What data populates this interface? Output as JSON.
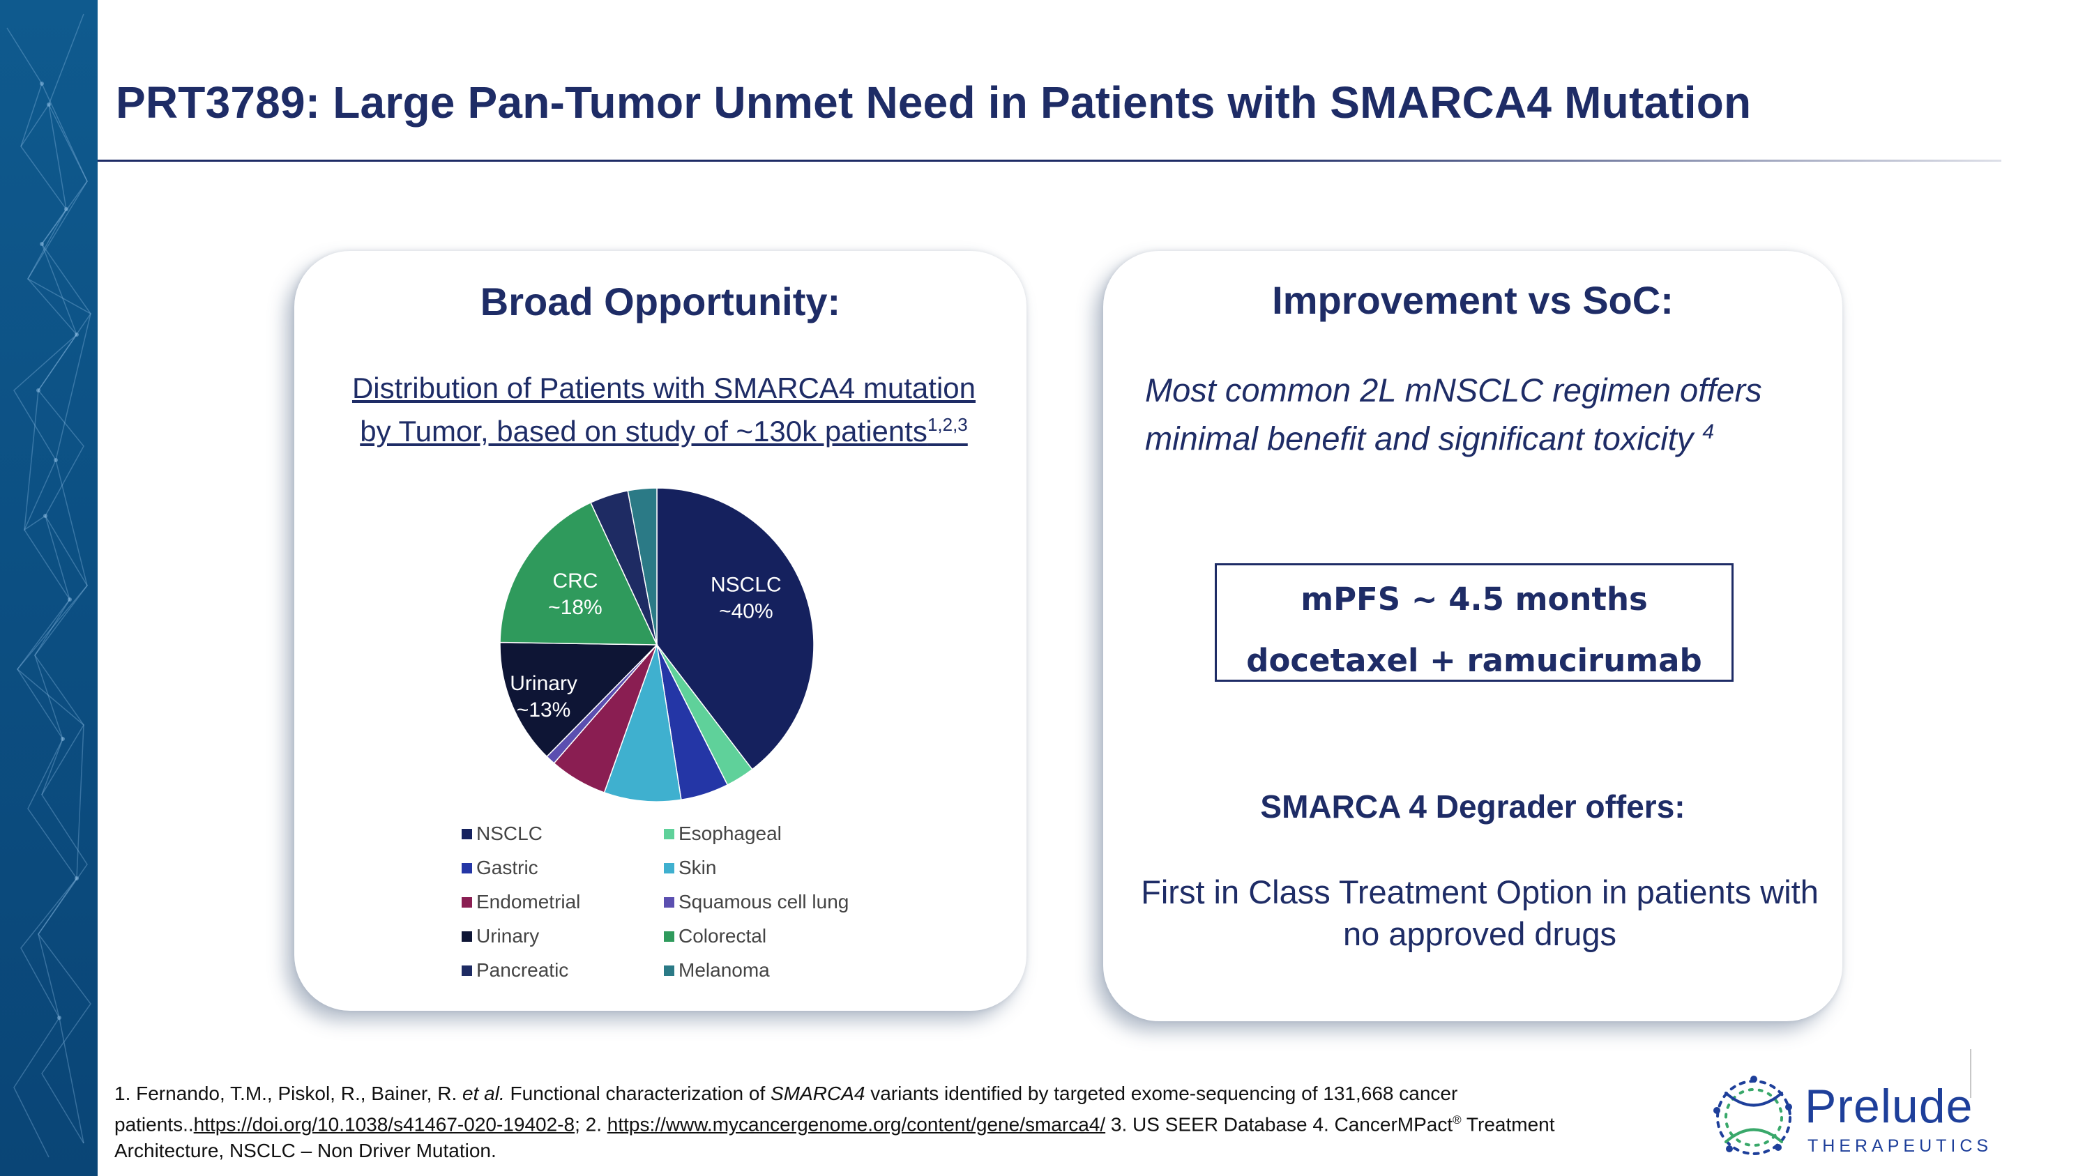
{
  "slide": {
    "title": "PRT3789: Large Pan-Tumor Unmet Need in Patients with SMARCA4 Mutation"
  },
  "left_card": {
    "heading": "Broad Opportunity:",
    "subtitle": "Distribution of Patients with SMARCA4 mutation by Tumor, based on study of ~130k patients",
    "subtitle_superscript": "1,2,3"
  },
  "right_card": {
    "heading": "Improvement vs SoC:",
    "italic_text": "Most common 2L mNSCLC regimen offers minimal benefit and significant toxicity",
    "italic_superscript": "4",
    "box_line1": "mPFS ~ 4.5 months",
    "box_line2": "docetaxel + ramucirumab",
    "degrader_heading": "SMARCA 4 Degrader offers:",
    "degrader_body": "First in Class Treatment Option in patients with no approved drugs"
  },
  "chart_data": {
    "type": "pie",
    "title": "",
    "categories": [
      "NSCLC",
      "Esophageal",
      "Gastric",
      "Skin",
      "Endometrial",
      "Squamous cell lung",
      "Urinary",
      "Colorectal",
      "Pancreatic",
      "Melanoma"
    ],
    "values": [
      40,
      3,
      5,
      8,
      6,
      1,
      13,
      18,
      4,
      3
    ],
    "colors": [
      "#15215e",
      "#5fd19a",
      "#2436a6",
      "#3fb0cf",
      "#8a1e52",
      "#5b4fb0",
      "#0e1535",
      "#2f9a5c",
      "#1e2b63",
      "#2b7a86"
    ],
    "labels": [
      {
        "category": "NSCLC",
        "name": "NSCLC",
        "pct": "~40%"
      },
      {
        "category": "Colorectal",
        "name": "CRC",
        "pct": "~18%"
      },
      {
        "category": "Urinary",
        "name": "Urinary",
        "pct": "~13%"
      }
    ],
    "legend_order": [
      "NSCLC",
      "Esophageal",
      "Gastric",
      "Skin",
      "Endometrial",
      "Squamous cell lung",
      "Urinary",
      "Colorectal",
      "Pancreatic",
      "Melanoma"
    ],
    "legend_position": "bottom"
  },
  "footnote": {
    "part1": "1. Fernando, T.M., Piskol, R., Bainer, R. ",
    "etal": "et al.",
    "part2": " Functional characterization of ",
    "gene": "SMARCA4",
    "part3": " variants identified by targeted exome-sequencing of 131,668 cancer patients..",
    "link1": "https://doi.org/10.1038/s41467-020-19402-8",
    "part4": "; 2. ",
    "link2": "https://www.mycancergenome.org/content/gene/smarca4/",
    "part5": " 3. US SEER Database 4. CancerMPact",
    "reg": "®",
    "part6": " Treatment Architecture, NSCLC – Non Driver Mutation."
  },
  "logo": {
    "name": "Prelude",
    "subtitle": "THERAPEUTICS",
    "accent_color": "#1e3f9a"
  },
  "theme": {
    "primary": "#1e2c66",
    "band": "#0c4f82"
  }
}
